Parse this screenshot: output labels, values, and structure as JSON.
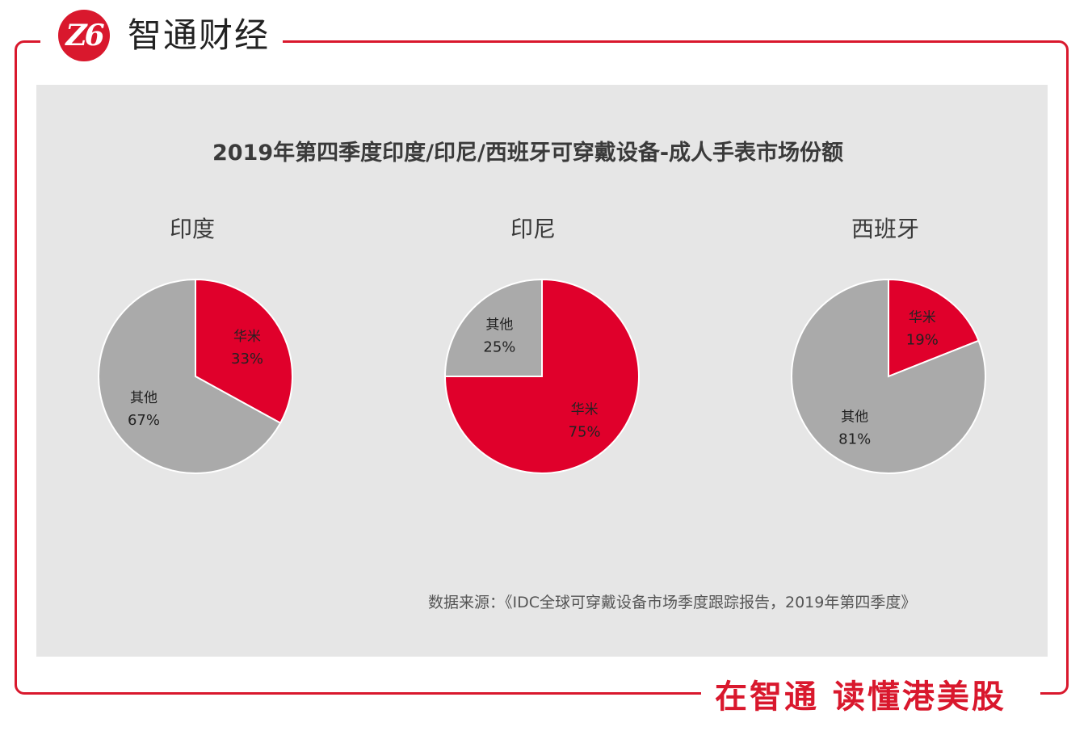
{
  "branding": {
    "logo_mark": "Z6",
    "logo_text": "智通财经",
    "slogan": "在智通 读懂港美股",
    "accent_color": "#d9182d"
  },
  "chart_data": {
    "type": "pie",
    "title": "2019年第四季度印度/印尼/西班牙可穿戴设备-成人手表市场份额",
    "source": "数据来源：《IDC全球可穿戴设备市场季度跟踪报告，2019年第四季度》",
    "colors": {
      "华米": "#e0002b",
      "其他": "#aaaaaa"
    },
    "charts": [
      {
        "name": "印度",
        "slices": [
          {
            "label": "华米",
            "value": 33,
            "pct": "33%"
          },
          {
            "label": "其他",
            "value": 67,
            "pct": "67%"
          }
        ]
      },
      {
        "name": "印尼",
        "slices": [
          {
            "label": "华米",
            "value": 75,
            "pct": "75%"
          },
          {
            "label": "其他",
            "value": 25,
            "pct": "25%"
          }
        ]
      },
      {
        "name": "西班牙",
        "slices": [
          {
            "label": "华米",
            "value": 19,
            "pct": "19%"
          },
          {
            "label": "其他",
            "value": 81,
            "pct": "81%"
          }
        ]
      }
    ]
  }
}
